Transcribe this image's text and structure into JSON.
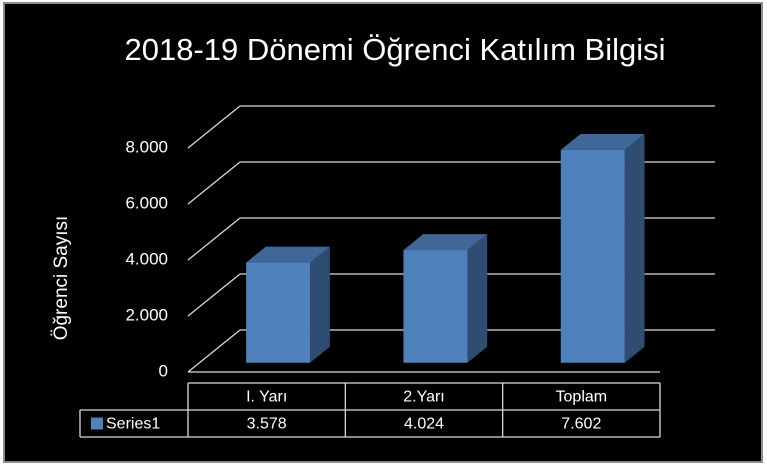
{
  "chart_data": {
    "type": "bar3d",
    "title": "2018-19 Dönemi Öğrenci Katılım Bilgisi",
    "y_label": "Öğrenci Sayısı",
    "categories": [
      "I. Yarı",
      "2.Yarı",
      "Toplam"
    ],
    "series": [
      {
        "name": "Series1",
        "color": "#4f81bd",
        "values": [
          3578,
          4024,
          7602
        ],
        "value_labels": [
          "3.578",
          "4.024",
          "7.602"
        ]
      }
    ],
    "ylim": [
      0,
      8000
    ],
    "yticks": [
      0,
      {
        "value": 2000,
        "label": "2.000"
      },
      {
        "value": 4000,
        "label": "4.000"
      },
      {
        "value": 6000,
        "label": "6.000"
      },
      {
        "value": 8000,
        "label": "8.000"
      }
    ],
    "grid": true,
    "data_table": true
  }
}
